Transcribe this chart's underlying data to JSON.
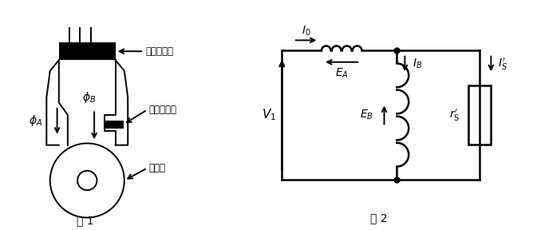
{
  "fig1_label": "図 1",
  "fig2_label": "図 2",
  "label_ichiji": "一次コイル",
  "label_tanraku": "短絡コイル",
  "label_kaiten": "回転子",
  "bg_color": "#ffffff",
  "line_color": "#000000"
}
